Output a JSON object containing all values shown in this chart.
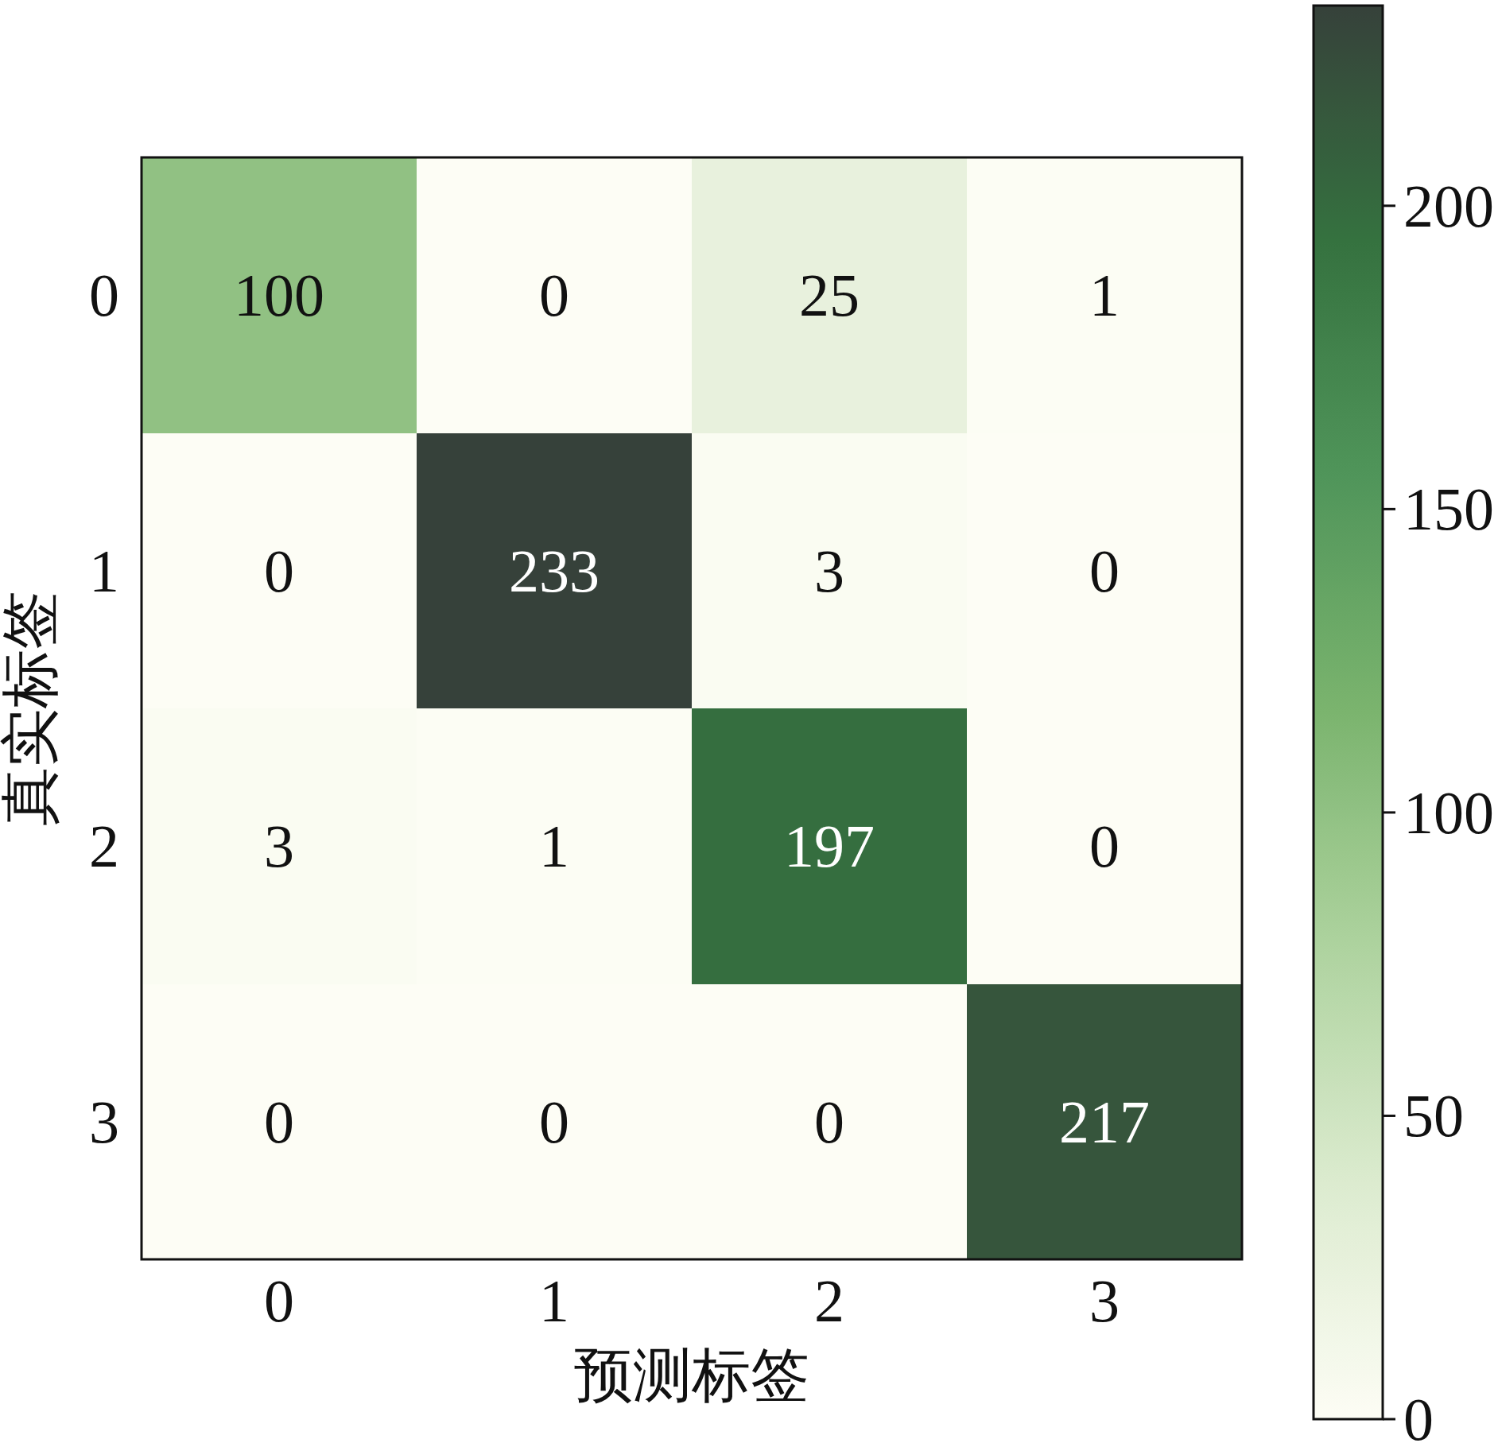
{
  "chart_data": {
    "type": "heatmap",
    "xlabel": "预测标签",
    "ylabel": "真实标签",
    "categories": [
      "0",
      "1",
      "2",
      "3"
    ],
    "y_categories": [
      "0",
      "1",
      "2",
      "3"
    ],
    "cells": [
      [
        100,
        0,
        25,
        1
      ],
      [
        0,
        233,
        3,
        0
      ],
      [
        3,
        1,
        197,
        0
      ],
      [
        0,
        0,
        0,
        217
      ]
    ],
    "clim": [
      0,
      233
    ],
    "cticks": [
      0,
      50,
      100,
      150,
      200
    ],
    "colors": [
      "#fdfdf5",
      "#dcebcf",
      "#aed39f",
      "#7bb46e",
      "#50955a",
      "#35723f",
      "#36413a"
    ],
    "data_labels": true
  }
}
